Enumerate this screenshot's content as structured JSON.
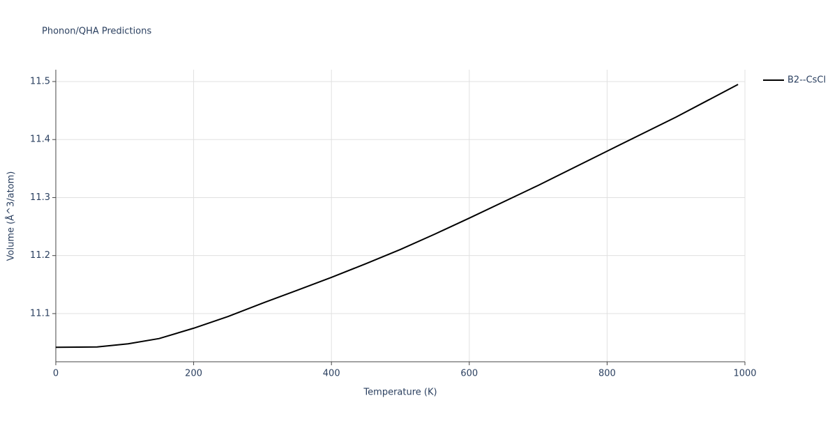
{
  "chart_data": {
    "type": "line",
    "title": "Phonon/QHA Predictions",
    "x_label": "Temperature (K)",
    "y_label": "Volume (Å^3/atom)",
    "x": [
      0,
      60,
      105,
      150,
      200,
      250,
      300,
      350,
      400,
      450,
      500,
      550,
      600,
      700,
      800,
      900,
      990
    ],
    "series": [
      {
        "name": "B2--CsCl",
        "color": "#000000",
        "values": [
          11.042,
          11.0425,
          11.048,
          11.057,
          11.0748,
          11.095,
          11.118,
          11.14,
          11.1625,
          11.186,
          11.2105,
          11.237,
          11.2646,
          11.321,
          11.38,
          11.4387,
          11.495
        ]
      }
    ],
    "xlim": [
      0,
      1000
    ],
    "xticks": [
      0,
      200,
      400,
      600,
      800,
      1000
    ],
    "ylim": [
      11.017,
      11.5204
    ],
    "yticks": [
      11.1,
      11.2,
      11.3,
      11.4,
      11.5
    ],
    "grid": true,
    "legend": "right"
  }
}
